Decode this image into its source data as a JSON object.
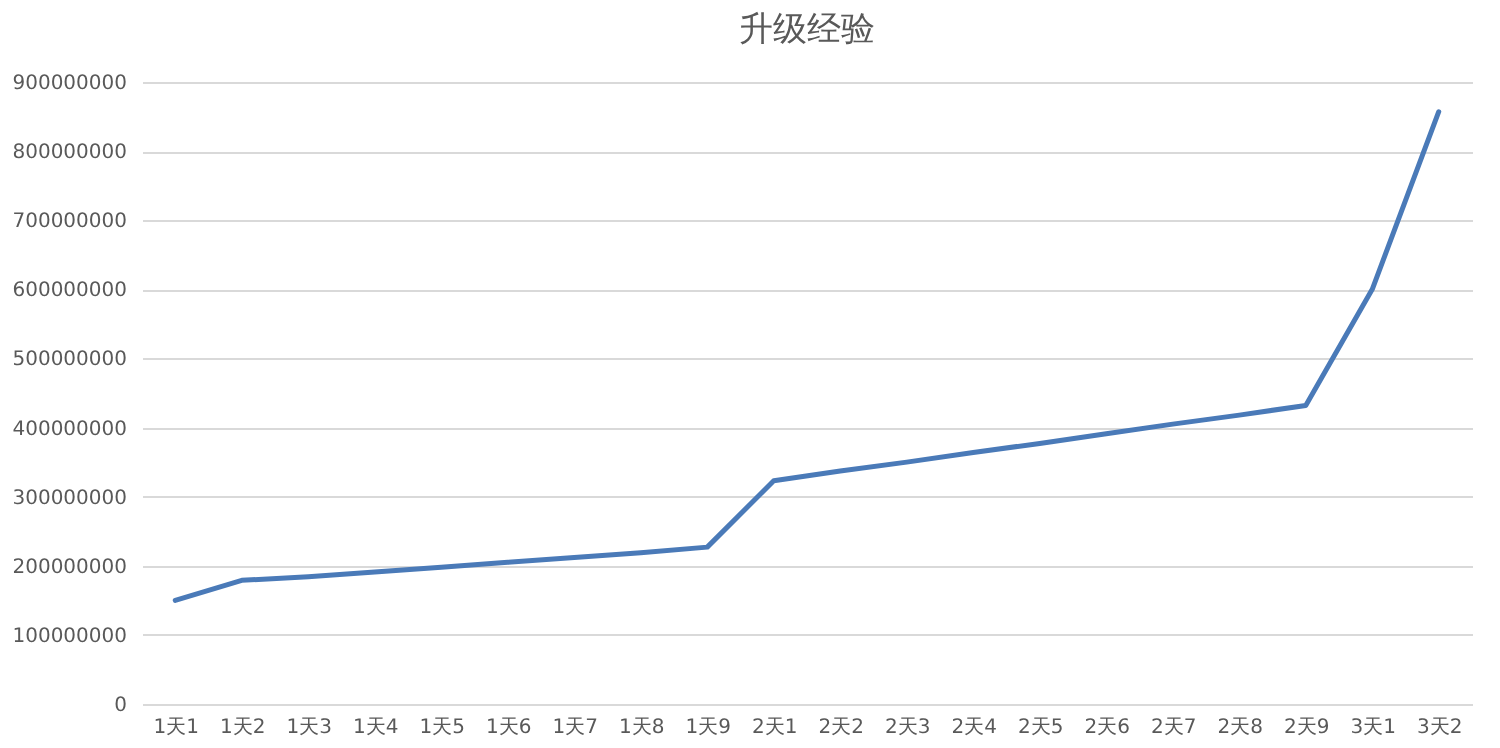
{
  "chart_data": {
    "type": "line",
    "title": "升级经验",
    "categories": [
      "1天1",
      "1天2",
      "1天3",
      "1天4",
      "1天5",
      "1天6",
      "1天7",
      "1天8",
      "1天9",
      "2天1",
      "2天2",
      "2天3",
      "2天4",
      "2天5",
      "2天6",
      "2天7",
      "2天8",
      "2天9",
      "3天1",
      "3天2"
    ],
    "series": [
      {
        "color": "#4a7ab8",
        "values": [
          150000000,
          179000000,
          184000000,
          191000000,
          198000000,
          205000000,
          212000000,
          219000000,
          227000000,
          323000000,
          337000000,
          350000000,
          364000000,
          377000000,
          391000000,
          405000000,
          418000000,
          432000000,
          600000000,
          857000000
        ]
      }
    ],
    "ylim": [
      0,
      900000000
    ],
    "yticks": [
      0,
      100000000,
      200000000,
      300000000,
      400000000,
      500000000,
      600000000,
      700000000,
      800000000,
      900000000
    ],
    "grid": "y",
    "legend": false,
    "marker": "none",
    "line_style": "solid"
  }
}
